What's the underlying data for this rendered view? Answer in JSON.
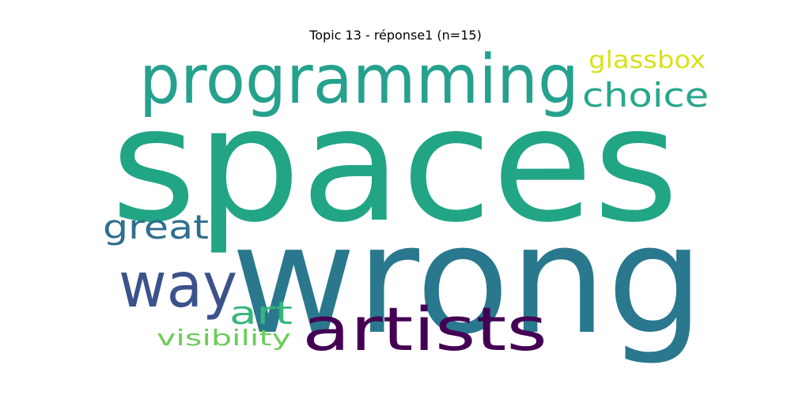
{
  "title": "Topic 13 - réponse1 (n=15)",
  "words": [
    {
      "text": "spaces",
      "color": "#21a585"
    },
    {
      "text": "wrong",
      "color": "#2a788e"
    },
    {
      "text": "programming",
      "color": "#25a18e"
    },
    {
      "text": "artists",
      "color": "#440154"
    },
    {
      "text": "way",
      "color": "#3b528b"
    },
    {
      "text": "choice",
      "color": "#26a78a"
    },
    {
      "text": "great",
      "color": "#2e6e8e"
    },
    {
      "text": "art",
      "color": "#34b779"
    },
    {
      "text": "glassbox",
      "color": "#d8e219"
    },
    {
      "text": "visibility",
      "color": "#6ccd5a"
    }
  ]
}
